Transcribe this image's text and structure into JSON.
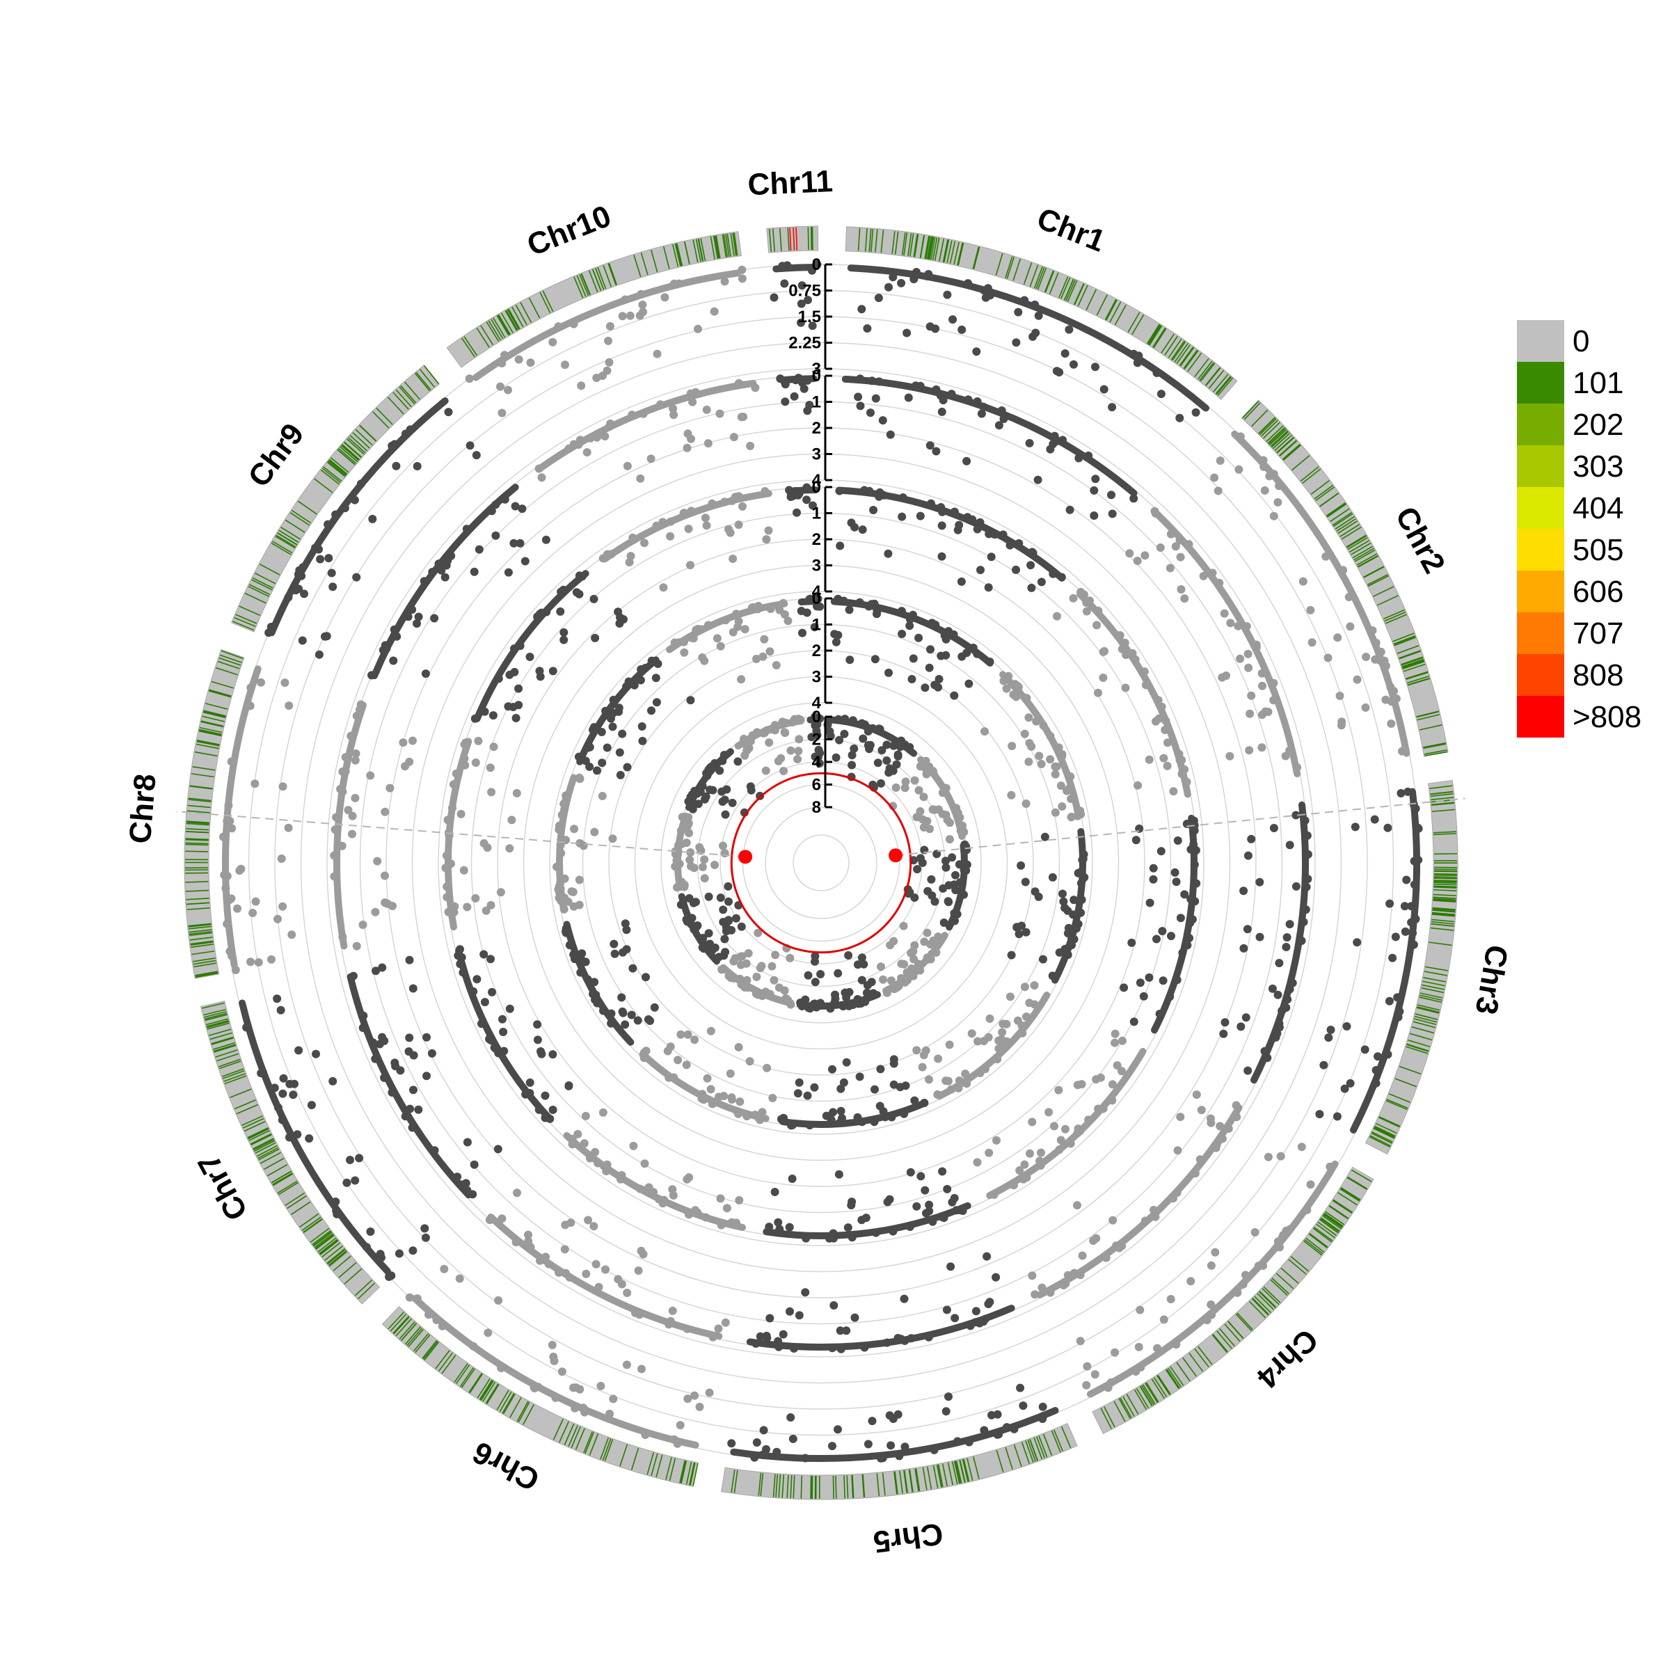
{
  "chart_data": {
    "type": "scatter",
    "subtype": "circular-manhattan",
    "chromosomes": [
      "Chr1",
      "Chr2",
      "Chr3",
      "Chr4",
      "Chr5",
      "Chr6",
      "Chr7",
      "Chr8",
      "Chr9",
      "Chr10",
      "Chr11"
    ],
    "chromosome_relative_lengths": [
      1.0,
      0.95,
      0.9,
      0.88,
      0.85,
      0.83,
      0.8,
      0.78,
      0.76,
      0.74,
      0.12
    ],
    "point_colors": [
      "#4a4a4a",
      "#9b9b9b"
    ],
    "tracks": [
      {
        "ticks": [
          "0",
          "0.75",
          "1.5",
          "2.25",
          "3"
        ],
        "ylim": [
          0,
          3
        ]
      },
      {
        "ticks": [
          "0",
          "1",
          "2",
          "3",
          "4"
        ],
        "ylim": [
          0,
          4
        ]
      },
      {
        "ticks": [
          "0",
          "1",
          "2",
          "3",
          "4"
        ],
        "ylim": [
          0,
          4
        ]
      },
      {
        "ticks": [
          "0",
          "1",
          "2",
          "3",
          "4"
        ],
        "ylim": [
          0,
          4
        ]
      },
      {
        "ticks": [
          "0",
          "2",
          "4",
          "6",
          "8"
        ],
        "ylim": [
          0,
          8
        ],
        "threshold_line_color": "#e00000",
        "significant_points": [
          {
            "chromosome": "Chr8",
            "position_fraction": 0.5,
            "value": 6.2
          },
          {
            "chromosome": "Chr3",
            "position_fraction": 0.05,
            "value": 6.3
          }
        ]
      }
    ],
    "density_legend": {
      "labels": [
        "0",
        "101",
        "202",
        "303",
        "404",
        "505",
        "606",
        "707",
        "808",
        ">808"
      ],
      "colors": [
        "#c0c0c0",
        "#3a8a00",
        "#76ad00",
        "#aac800",
        "#dde800",
        "#ffdd00",
        "#ffaa00",
        "#ff7a00",
        "#ff4400",
        "#ff0000"
      ]
    },
    "grid": true
  }
}
